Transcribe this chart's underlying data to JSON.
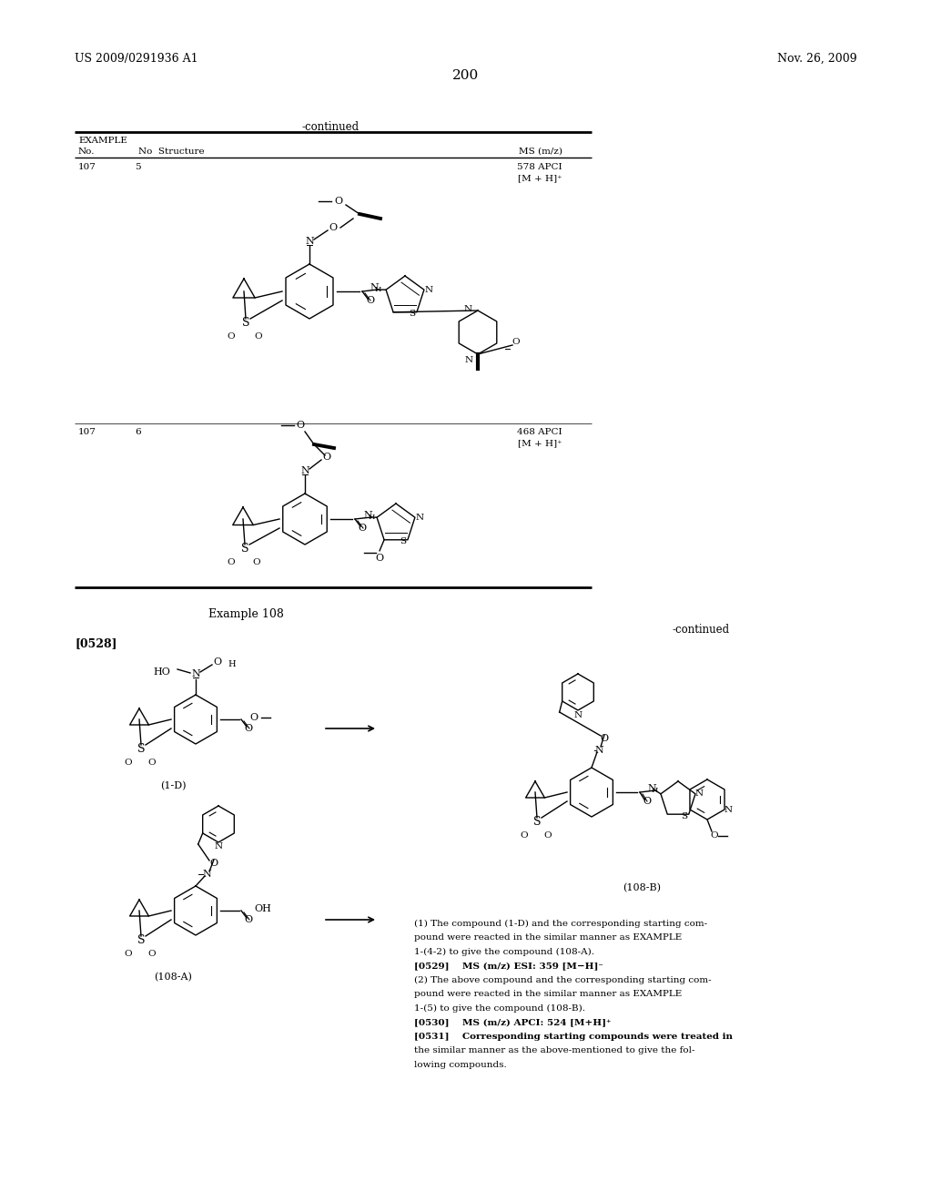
{
  "page_number": "200",
  "header_left": "US 2009/0291936 A1",
  "header_right": "Nov. 26, 2009",
  "continued_table": "-continued",
  "example108_label": "Example 108",
  "continued_right": "-continued",
  "ref0528": "[0528]",
  "label_1d": "(1-D)",
  "label_108a": "(108-A)",
  "label_108b": "(108-B)",
  "ex107_no1": "107",
  "ex107_sub1": "5",
  "ex107_ms1a": "578 APCI",
  "ex107_ms1b": "[M + H]⁺",
  "ex107_no2": "107",
  "ex107_sub2": "6",
  "ex107_ms2a": "468 APCI",
  "ex107_ms2b": "[M + H]⁺",
  "t1a": "(1) The compound (1-D) and the corresponding starting com-",
  "t1b": "pound were reacted in the similar manner as EXAMPLE",
  "t1c": "1-(4-2) to give the compound (108-A).",
  "t2": "[0529]    MS (m/z) ESI: 359 [M−H]⁻",
  "t3a": "(2) The above compound and the corresponding starting com-",
  "t3b": "pound were reacted in the similar manner as EXAMPLE",
  "t3c": "1-(5) to give the compound (108-B).",
  "t4": "[0530]    MS (m/z) APCI: 524 [M+H]⁺",
  "t5a": "[0531]    Corresponding starting compounds were treated in",
  "t5b": "the similar manner as the above-mentioned to give the fol-",
  "t5c": "lowing compounds.",
  "bg": "#ffffff",
  "fg": "#000000"
}
